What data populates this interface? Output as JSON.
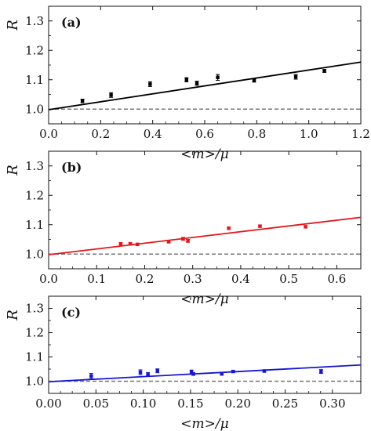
{
  "chart_data": [
    {
      "type": "scatter",
      "panel_label": "(a)",
      "xlabel": "<m>/μ",
      "ylabel": "R",
      "xlim": [
        0.0,
        1.2
      ],
      "ylim": [
        0.95,
        1.35
      ],
      "x_ticks": [
        0.0,
        0.2,
        0.4,
        0.6,
        0.8,
        1.0,
        1.2
      ],
      "x_tick_labels": [
        "0.0",
        "0.2",
        "0.4",
        "0.6",
        "0.8",
        "1.0",
        "1.2"
      ],
      "y_ticks": [
        1.0,
        1.1,
        1.2,
        1.3
      ],
      "y_tick_labels": [
        "1.0",
        "1.1",
        "1.2",
        "1.3"
      ],
      "color": "#000000",
      "series": [
        {
          "points": [
            {
              "x": 0.13,
              "y": 1.028,
              "err": 0.006
            },
            {
              "x": 0.24,
              "y": 1.048,
              "err": 0.008
            },
            {
              "x": 0.39,
              "y": 1.085,
              "err": 0.008
            },
            {
              "x": 0.53,
              "y": 1.1,
              "err": 0.007
            },
            {
              "x": 0.57,
              "y": 1.088,
              "err": 0.007
            },
            {
              "x": 0.65,
              "y": 1.108,
              "err": 0.01
            },
            {
              "x": 0.79,
              "y": 1.097,
              "err": 0.005
            },
            {
              "x": 0.95,
              "y": 1.11,
              "err": 0.008
            },
            {
              "x": 1.06,
              "y": 1.13,
              "err": 0.005
            }
          ]
        }
      ],
      "fit_line": {
        "x": [
          0.0,
          1.2
        ],
        "y": [
          0.998,
          1.16
        ]
      },
      "reference_line": {
        "y": 1.0,
        "color": "#777777"
      }
    },
    {
      "type": "scatter",
      "panel_label": "(b)",
      "xlabel": "<m>/μ",
      "ylabel": "R",
      "xlim": [
        0.0,
        0.65
      ],
      "ylim": [
        0.95,
        1.35
      ],
      "x_ticks": [
        0.0,
        0.1,
        0.2,
        0.3,
        0.4,
        0.5,
        0.6
      ],
      "x_tick_labels": [
        "0.0",
        "0.1",
        "0.2",
        "0.3",
        "0.4",
        "0.5",
        "0.6"
      ],
      "y_ticks": [
        1.0,
        1.1,
        1.2,
        1.3
      ],
      "y_tick_labels": [
        "1.0",
        "1.1",
        "1.2",
        "1.3"
      ],
      "color": "#e8141b",
      "series": [
        {
          "points": [
            {
              "x": 0.15,
              "y": 1.035,
              "err": 0.004
            },
            {
              "x": 0.17,
              "y": 1.035,
              "err": 0.004
            },
            {
              "x": 0.185,
              "y": 1.033,
              "err": 0.004
            },
            {
              "x": 0.25,
              "y": 1.042,
              "err": 0.004
            },
            {
              "x": 0.28,
              "y": 1.052,
              "err": 0.005
            },
            {
              "x": 0.29,
              "y": 1.045,
              "err": 0.005
            },
            {
              "x": 0.375,
              "y": 1.088,
              "err": 0.004
            },
            {
              "x": 0.44,
              "y": 1.095,
              "err": 0.004
            },
            {
              "x": 0.535,
              "y": 1.093,
              "err": 0.004
            }
          ]
        }
      ],
      "fit_line": {
        "x": [
          0.0,
          0.65
        ],
        "y": [
          0.998,
          1.125
        ]
      },
      "reference_line": {
        "y": 1.0,
        "color": "#777777"
      }
    },
    {
      "type": "scatter",
      "panel_label": "(c)",
      "xlabel": "<m>/μ",
      "ylabel": "R",
      "xlim": [
        0.0,
        0.33
      ],
      "ylim": [
        0.95,
        1.35
      ],
      "x_ticks": [
        0.0,
        0.05,
        0.1,
        0.15,
        0.2,
        0.25,
        0.3
      ],
      "x_tick_labels": [
        "0.00",
        "0.05",
        "0.10",
        "0.15",
        "0.20",
        "0.25",
        "0.30"
      ],
      "y_ticks": [
        1.0,
        1.1,
        1.2,
        1.3
      ],
      "y_tick_labels": [
        "1.0",
        "1.1",
        "1.2",
        "1.3"
      ],
      "color": "#1515d8",
      "series": [
        {
          "points": [
            {
              "x": 0.045,
              "y": 1.022,
              "err": 0.01
            },
            {
              "x": 0.097,
              "y": 1.037,
              "err": 0.01
            },
            {
              "x": 0.105,
              "y": 1.03,
              "err": 0.006
            },
            {
              "x": 0.115,
              "y": 1.043,
              "err": 0.008
            },
            {
              "x": 0.151,
              "y": 1.038,
              "err": 0.008
            },
            {
              "x": 0.153,
              "y": 1.03,
              "err": 0.006
            },
            {
              "x": 0.183,
              "y": 1.03,
              "err": 0.004
            },
            {
              "x": 0.195,
              "y": 1.04,
              "err": 0.004
            },
            {
              "x": 0.228,
              "y": 1.042,
              "err": 0.005
            },
            {
              "x": 0.288,
              "y": 1.04,
              "err": 0.008
            }
          ]
        }
      ],
      "fit_line": {
        "x": [
          0.0,
          0.33
        ],
        "y": [
          0.998,
          1.067
        ]
      },
      "reference_line": {
        "y": 1.0,
        "color": "#777777"
      }
    }
  ]
}
